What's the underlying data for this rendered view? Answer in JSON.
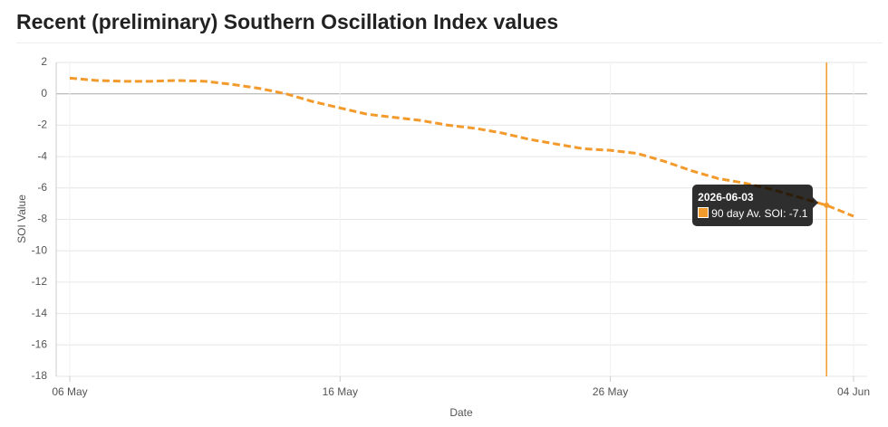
{
  "chart_data": {
    "type": "line",
    "title": "Recent (preliminary) Southern Oscillation Index values",
    "x_label": "Date",
    "y_label": "SOI Value",
    "x": [
      "2026-05-06",
      "2026-05-07",
      "2026-05-08",
      "2026-05-09",
      "2026-05-10",
      "2026-05-11",
      "2026-05-12",
      "2026-05-13",
      "2026-05-14",
      "2026-05-15",
      "2026-05-16",
      "2026-05-17",
      "2026-05-18",
      "2026-05-19",
      "2026-05-20",
      "2026-05-21",
      "2026-05-22",
      "2026-05-23",
      "2026-05-24",
      "2026-05-25",
      "2026-05-26",
      "2026-05-27",
      "2026-05-28",
      "2026-05-29",
      "2026-05-30",
      "2026-05-31",
      "2026-06-01",
      "2026-06-02",
      "2026-06-03",
      "2026-06-04"
    ],
    "series": [
      {
        "name": "90 day Av. SOI",
        "color": "#f39a2c",
        "values": [
          1.0,
          0.85,
          0.8,
          0.8,
          0.85,
          0.8,
          0.6,
          0.35,
          0.0,
          -0.5,
          -0.9,
          -1.3,
          -1.5,
          -1.7,
          -2.0,
          -2.2,
          -2.5,
          -2.9,
          -3.2,
          -3.5,
          -3.6,
          -3.8,
          -4.3,
          -4.9,
          -5.4,
          -5.7,
          -6.1,
          -6.6,
          -7.1,
          -7.8
        ]
      }
    ],
    "xlim": [
      "2026-05-06",
      "2026-06-04"
    ],
    "xticks": [
      {
        "value": "2026-05-06",
        "label": "06 May"
      },
      {
        "value": "2026-05-16",
        "label": "16 May"
      },
      {
        "value": "2026-05-26",
        "label": "26 May"
      },
      {
        "value": "2026-06-04",
        "label": "04 Jun"
      }
    ],
    "ylim": [
      -18,
      2
    ],
    "yticks": [
      2,
      0,
      -2,
      -4,
      -6,
      -8,
      -10,
      -12,
      -14,
      -16,
      -18
    ],
    "grid": true,
    "tooltip": {
      "title": "2026-06-03",
      "text": "90 day Av. SOI: -7.1"
    }
  }
}
